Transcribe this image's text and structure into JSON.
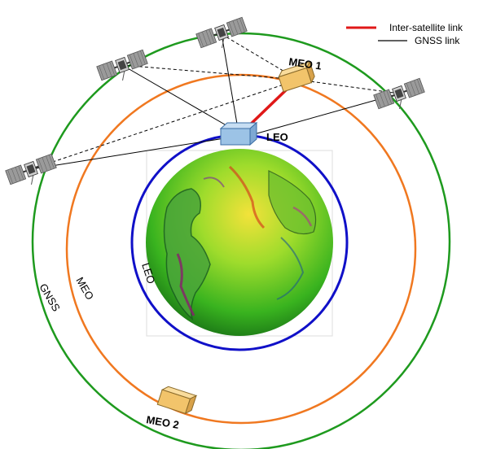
{
  "legend": {
    "isl_label": "Inter-satellite link",
    "gnss_label": "GNSS link",
    "isl_color": "#e01818",
    "gnss_color": "#000000"
  },
  "orbits": {
    "leo": {
      "label": "LEO",
      "color": "#1010c8"
    },
    "meo": {
      "label": "MEO",
      "color": "#f07820"
    },
    "gnss": {
      "label": "GNSS",
      "color": "#1e9a1e"
    }
  },
  "satellites": {
    "leo": {
      "label": "LEO",
      "color": "#9cc3e6"
    },
    "meo1": {
      "label": "MEO 1",
      "color": "#f2c46b"
    },
    "meo2": {
      "label": "MEO 2",
      "color": "#f2c46b"
    }
  },
  "icons": [
    "gnss-satellite-icon",
    "earth-globe-icon"
  ]
}
